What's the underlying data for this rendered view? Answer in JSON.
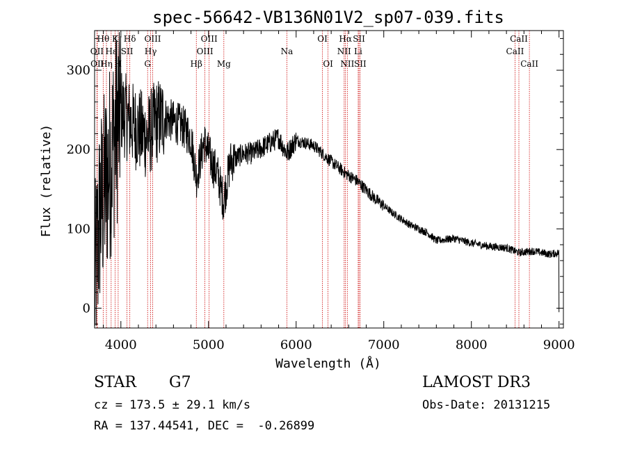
{
  "chart_data": {
    "type": "line",
    "title": "spec-56642-VB136N01V2_sp07-039.fits",
    "xlabel": "Wavelength (Å)",
    "ylabel": "Flux (relative)",
    "xlim": [
      3700,
      9050
    ],
    "ylim": [
      -25,
      350
    ],
    "xticks": [
      4000,
      5000,
      6000,
      7000,
      8000,
      9000
    ],
    "yticks": [
      0,
      100,
      200,
      300
    ],
    "x_minor_step": 200,
    "y_minor_step": 20,
    "spectrum_anchors": [
      [
        3700,
        20
      ],
      [
        3760,
        120
      ],
      [
        3850,
        170
      ],
      [
        3950,
        230
      ],
      [
        4000,
        250
      ],
      [
        4100,
        235
      ],
      [
        4200,
        225
      ],
      [
        4300,
        215
      ],
      [
        4400,
        235
      ],
      [
        4500,
        240
      ],
      [
        4600,
        235
      ],
      [
        4700,
        230
      ],
      [
        4800,
        215
      ],
      [
        4862,
        165
      ],
      [
        4950,
        210
      ],
      [
        5050,
        180
      ],
      [
        5100,
        170
      ],
      [
        5172,
        135
      ],
      [
        5250,
        185
      ],
      [
        5400,
        195
      ],
      [
        5500,
        195
      ],
      [
        5650,
        205
      ],
      [
        5800,
        215
      ],
      [
        5893,
        195
      ],
      [
        6000,
        212
      ],
      [
        6200,
        205
      ],
      [
        6300,
        195
      ],
      [
        6400,
        185
      ],
      [
        6563,
        170
      ],
      [
        6700,
        160
      ],
      [
        6900,
        138
      ],
      [
        7100,
        120
      ],
      [
        7300,
        105
      ],
      [
        7500,
        95
      ],
      [
        7600,
        85
      ],
      [
        7800,
        88
      ],
      [
        8000,
        82
      ],
      [
        8200,
        78
      ],
      [
        8400,
        76
      ],
      [
        8542,
        70
      ],
      [
        8700,
        72
      ],
      [
        8900,
        68
      ],
      [
        9000,
        70
      ]
    ],
    "spectral_lines": [
      {
        "label": "Hθ",
        "wavelength": 3798,
        "row": 0
      },
      {
        "label": "OII",
        "wavelength": 3727,
        "row": 1
      },
      {
        "label": "OII",
        "wavelength": 3730,
        "row": 2
      },
      {
        "label": "Hη",
        "wavelength": 3835,
        "row": 2
      },
      {
        "label": "Hε",
        "wavelength": 3889,
        "row": 1
      },
      {
        "label": "K",
        "wavelength": 3934,
        "row": 0
      },
      {
        "label": "H",
        "wavelength": 3969,
        "row": 2
      },
      {
        "label": "SII",
        "wavelength": 4070,
        "row": 1
      },
      {
        "label": "Hδ",
        "wavelength": 4102,
        "row": 0
      },
      {
        "label": "OIII",
        "wavelength": 4363,
        "row": 0
      },
      {
        "label": "Hγ",
        "wavelength": 4340,
        "row": 1
      },
      {
        "label": "G",
        "wavelength": 4305,
        "row": 2
      },
      {
        "label": "Hβ",
        "wavelength": 4861,
        "row": 2
      },
      {
        "label": "OIII",
        "wavelength": 5007,
        "row": 0
      },
      {
        "label": "OIII",
        "wavelength": 4959,
        "row": 1
      },
      {
        "label": "Mg",
        "wavelength": 5175,
        "row": 2
      },
      {
        "label": "Na",
        "wavelength": 5894,
        "row": 1
      },
      {
        "label": "OI",
        "wavelength": 6300,
        "row": 0
      },
      {
        "label": "OI",
        "wavelength": 6364,
        "row": 2
      },
      {
        "label": "Hα",
        "wavelength": 6563,
        "row": 0
      },
      {
        "label": "NII",
        "wavelength": 6548,
        "row": 1
      },
      {
        "label": "NII",
        "wavelength": 6584,
        "row": 2
      },
      {
        "label": "SII",
        "wavelength": 6717,
        "row": 0
      },
      {
        "label": "Li",
        "wavelength": 6708,
        "row": 1
      },
      {
        "label": "SII",
        "wavelength": 6731,
        "row": 2
      },
      {
        "label": "CaII",
        "wavelength": 8542,
        "row": 0
      },
      {
        "label": "CaII",
        "wavelength": 8498,
        "row": 1
      },
      {
        "label": "CaII",
        "wavelength": 8662,
        "row": 2
      }
    ],
    "colors": {
      "spectrum": "#000000",
      "lines": "#cc0000",
      "axes": "#000000"
    }
  },
  "footer": {
    "object_class": "STAR",
    "subclass": "G7",
    "survey": "LAMOST DR3",
    "redshift": "cz = 173.5 ± 29.1 km/s",
    "obs_date": "Obs-Date: 20131215",
    "coords": "RA = 137.44541, DEC =  -0.26899"
  }
}
